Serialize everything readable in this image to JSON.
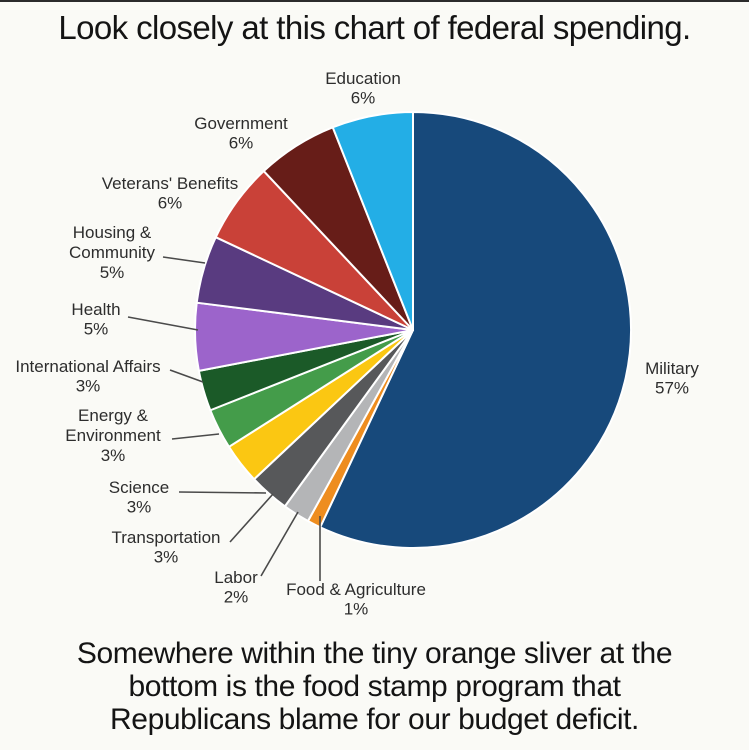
{
  "title": "Look closely at this chart of federal spending.",
  "caption_lines": [
    "Somewhere within the tiny orange sliver at the",
    "bottom is the food stamp program that",
    "Republicans blame for our budget deficit."
  ],
  "colors": {
    "background": "#fafaf6",
    "text": "#141414",
    "label_text": "#2d2d2d",
    "leader_line": "#4a4a4a",
    "slice_border": "#ffffff",
    "accent_orange_sliver": "#ee8d1f"
  },
  "chart_data": {
    "type": "pie",
    "title": "Look closely at this chart of federal spending.",
    "start_angle_deg": 0,
    "direction": "clockwise",
    "legend_position": "none",
    "units": "percent of federal spending",
    "total": 100,
    "segments": [
      {
        "id": "military",
        "label": "Military",
        "label_lines": [
          "Military"
        ],
        "pct": "57%",
        "value": 57,
        "color": "#17497b"
      },
      {
        "id": "food-agriculture",
        "label": "Food & Agriculture",
        "label_lines": [
          "Food & Agriculture"
        ],
        "pct": "1%",
        "value": 1,
        "color": "#ee8d1f"
      },
      {
        "id": "labor",
        "label": "Labor",
        "label_lines": [
          "Labor"
        ],
        "pct": "2%",
        "value": 2,
        "color": "#b4b5b7"
      },
      {
        "id": "transportation",
        "label": "Transportation",
        "label_lines": [
          "Transportation"
        ],
        "pct": "3%",
        "value": 3,
        "color": "#57585a"
      },
      {
        "id": "science",
        "label": "Science",
        "label_lines": [
          "Science"
        ],
        "pct": "3%",
        "value": 3,
        "color": "#fbc712"
      },
      {
        "id": "energy-environment",
        "label": "Energy & Environment",
        "label_lines": [
          "Energy &",
          "Environment"
        ],
        "pct": "3%",
        "value": 3,
        "color": "#449c4a"
      },
      {
        "id": "international-affairs",
        "label": "International Affairs",
        "label_lines": [
          "International Affairs"
        ],
        "pct": "3%",
        "value": 3,
        "color": "#1b5a28"
      },
      {
        "id": "health",
        "label": "Health",
        "label_lines": [
          "Health"
        ],
        "pct": "5%",
        "value": 5,
        "color": "#9c64cb"
      },
      {
        "id": "housing-community",
        "label": "Housing & Community",
        "label_lines": [
          "Housing &",
          "Community"
        ],
        "pct": "5%",
        "value": 5,
        "color": "#593b80"
      },
      {
        "id": "veterans-benefits",
        "label": "Veterans' Benefits",
        "label_lines": [
          "Veterans' Benefits"
        ],
        "pct": "6%",
        "value": 6,
        "color": "#c94138"
      },
      {
        "id": "government",
        "label": "Government",
        "label_lines": [
          "Government"
        ],
        "pct": "6%",
        "value": 6,
        "color": "#671d18"
      },
      {
        "id": "education",
        "label": "Education",
        "label_lines": [
          "Education"
        ],
        "pct": "6%",
        "value": 6,
        "color": "#23aee6"
      }
    ]
  }
}
